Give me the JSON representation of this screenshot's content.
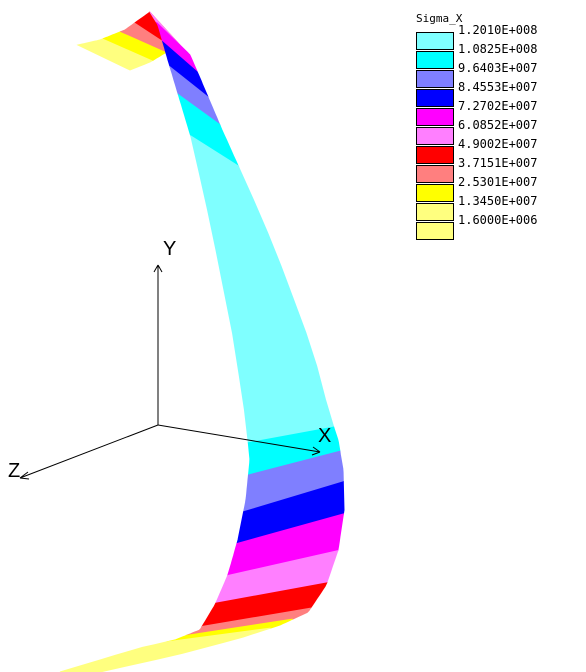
{
  "legend": {
    "title": "Sigma_X",
    "entries": [
      {
        "label": "1.2010E+008",
        "color": "#7fffff"
      },
      {
        "label": "1.0825E+008",
        "color": "#00ffff"
      },
      {
        "label": "9.6403E+007",
        "color": "#7f7fff"
      },
      {
        "label": "8.4553E+007",
        "color": "#0000ff"
      },
      {
        "label": "7.2702E+007",
        "color": "#ff00ff"
      },
      {
        "label": "6.0852E+007",
        "color": "#ff7fff"
      },
      {
        "label": "4.9002E+007",
        "color": "#ff0000"
      },
      {
        "label": "3.7151E+007",
        "color": "#ff7f7f"
      },
      {
        "label": "2.5301E+007",
        "color": "#ffff00"
      },
      {
        "label": "1.3450E+007",
        "color": "#ffff7f"
      },
      {
        "label": "1.6000E+006",
        "color": "#ffff7f"
      }
    ]
  },
  "axes": {
    "x_label": "X",
    "y_label": "Y",
    "z_label": "Z"
  }
}
